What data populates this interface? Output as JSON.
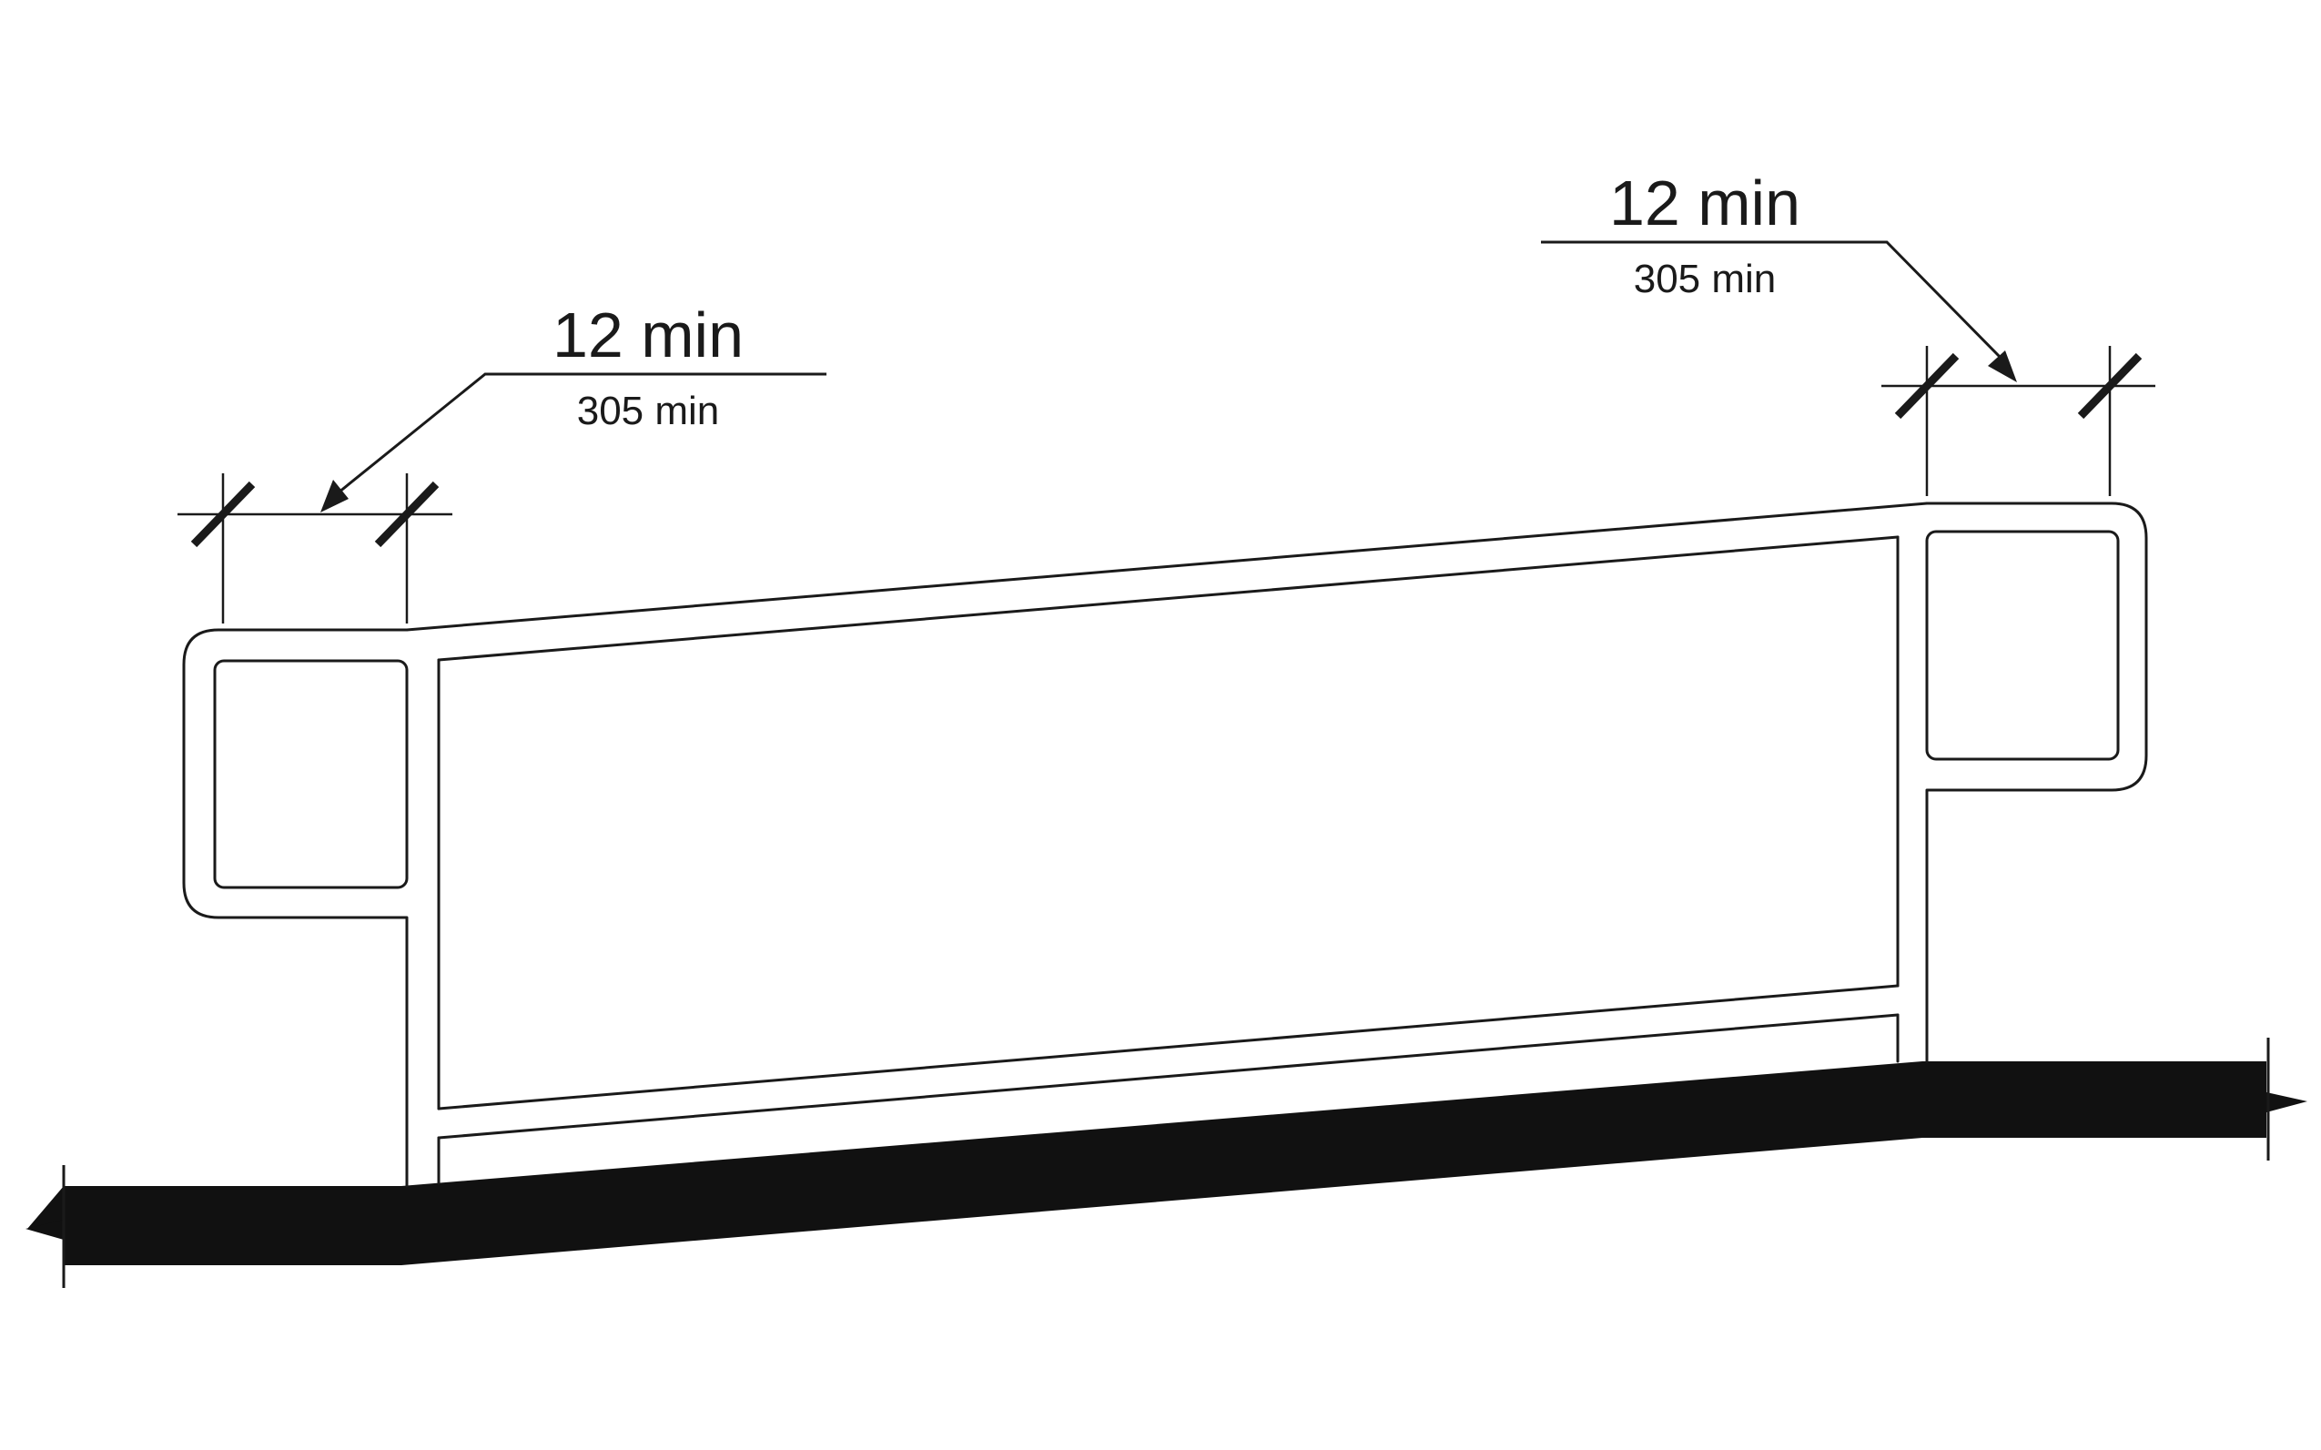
{
  "dimensions": {
    "left": {
      "imperial": "12 min",
      "metric": "305 min"
    },
    "right": {
      "imperial": "12 min",
      "metric": "305 min"
    }
  },
  "colors": {
    "ink": "#1a1a1a",
    "ground": "#111111",
    "background": "#ffffff"
  }
}
